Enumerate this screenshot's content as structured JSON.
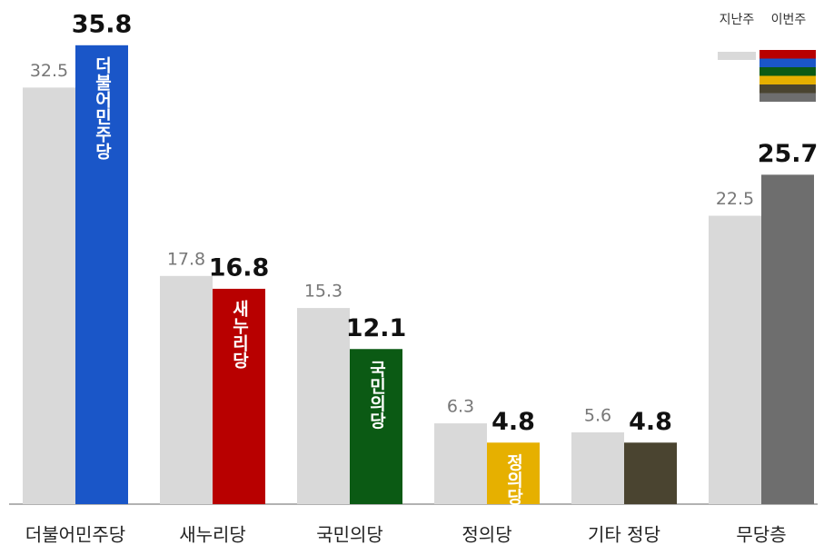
{
  "chart_data": {
    "type": "bar",
    "categories": [
      "더불어민주당",
      "새누리당",
      "국민의당",
      "정의당",
      "기타 정당",
      "무당층"
    ],
    "series": [
      {
        "name": "지난주",
        "color": "#d9d9d9",
        "values": [
          32.5,
          17.8,
          15.3,
          6.3,
          5.6,
          22.5
        ]
      },
      {
        "name": "이번주",
        "colors": [
          "#1a56c8",
          "#b80000",
          "#0b5a14",
          "#e6b000",
          "#4a4430",
          "#6e6e6e"
        ],
        "values": [
          35.8,
          16.8,
          12.1,
          4.8,
          4.8,
          25.7
        ]
      }
    ],
    "logo_labels": [
      "더불어민주당",
      "새누리당",
      "국민의당",
      "정의당",
      null,
      null
    ],
    "ylim": [
      0,
      36
    ]
  }
}
